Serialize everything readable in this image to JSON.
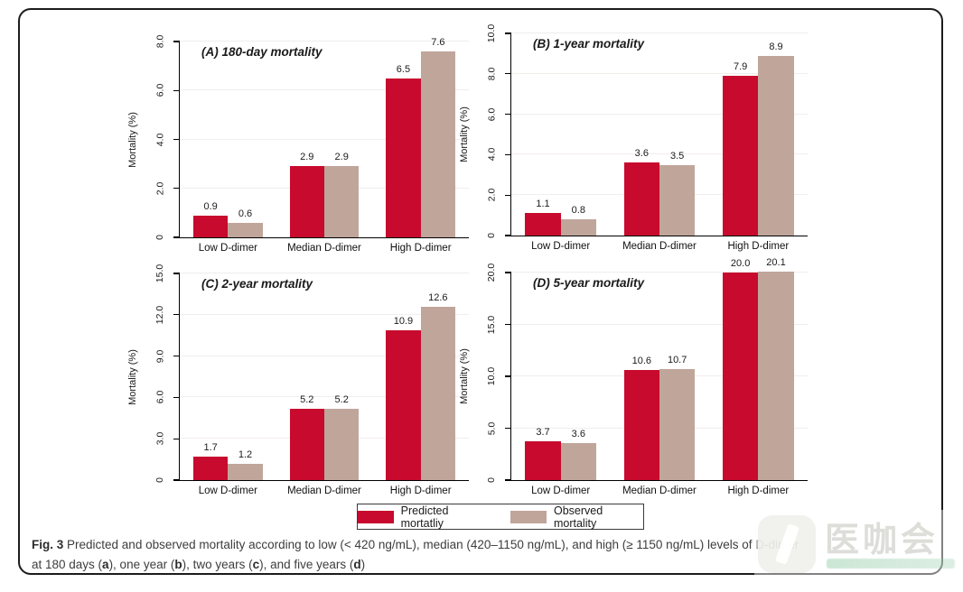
{
  "colors": {
    "predicted": "#C70A2D",
    "observed": "#C0A59B",
    "gridline": "#F1EDEB"
  },
  "legend": {
    "items": [
      {
        "series": "predicted",
        "label": "Predicted mortatliy"
      },
      {
        "series": "observed",
        "label": "Observed mortality"
      }
    ]
  },
  "caption": {
    "segments": [
      {
        "text": "Fig. 3",
        "bold": true
      },
      {
        "text": " Predicted and observed mortality according to low (< 420 ng/mL), median (420–1150 ng/mL), and high (≥ 1150 ng/mL) levels of D-dimer",
        "bold": false
      },
      {
        "br": true
      },
      {
        "text": "at 180 days (",
        "bold": false
      },
      {
        "text": "a",
        "bold": true
      },
      {
        "text": "), one year (",
        "bold": false
      },
      {
        "text": "b",
        "bold": true
      },
      {
        "text": "), two years (",
        "bold": false
      },
      {
        "text": "c",
        "bold": true
      },
      {
        "text": "), and five years (",
        "bold": false
      },
      {
        "text": "d",
        "bold": true
      },
      {
        "text": ")",
        "bold": false
      }
    ]
  },
  "watermark": {
    "text": "医咖会"
  },
  "chart_data": [
    {
      "type": "bar",
      "title": "(A) 180-day mortality",
      "ylabel": "Mortality (%)",
      "categories": [
        "Low D-dimer",
        "Median D-dimer",
        "High D-dimer"
      ],
      "series": [
        {
          "name": "Predicted mortatliy",
          "values": [
            0.9,
            2.9,
            6.5
          ]
        },
        {
          "name": "Observed mortality",
          "values": [
            0.6,
            2.9,
            7.6
          ]
        }
      ],
      "ylim": [
        0,
        8
      ],
      "ytick_values": [
        0,
        2,
        4,
        6,
        8
      ],
      "ytick_labels": [
        "0",
        "2.0",
        "4.0",
        "6.0",
        "8.0"
      ],
      "grid": true,
      "legend_position": "shared-bottom"
    },
    {
      "type": "bar",
      "title": "(B) 1-year mortality",
      "ylabel": "Mortality (%)",
      "categories": [
        "Low D-dimer",
        "Median D-dimer",
        "High D-dimer"
      ],
      "series": [
        {
          "name": "Predicted mortatliy",
          "values": [
            1.1,
            3.6,
            7.9
          ]
        },
        {
          "name": "Observed mortality",
          "values": [
            0.8,
            3.5,
            8.9
          ]
        }
      ],
      "ylim": [
        0,
        10
      ],
      "ytick_values": [
        0,
        2,
        4,
        6,
        8,
        10
      ],
      "ytick_labels": [
        "0",
        "2.0",
        "4.0",
        "6.0",
        "8.0",
        "10.0"
      ],
      "grid": true,
      "legend_position": "shared-bottom"
    },
    {
      "type": "bar",
      "title": "(C) 2-year mortality",
      "ylabel": "Mortality (%)",
      "categories": [
        "Low D-dimer",
        "Median D-dimer",
        "High D-dimer"
      ],
      "series": [
        {
          "name": "Predicted mortatliy",
          "values": [
            1.7,
            5.2,
            10.9
          ]
        },
        {
          "name": "Observed mortality",
          "values": [
            1.2,
            5.2,
            12.6
          ]
        }
      ],
      "ylim": [
        0,
        15
      ],
      "ytick_values": [
        0,
        3,
        6,
        9,
        12,
        15
      ],
      "ytick_labels": [
        "0",
        "3.0",
        "6.0",
        "9.0",
        "12.0",
        "15.0"
      ],
      "grid": true,
      "legend_position": "shared-bottom"
    },
    {
      "type": "bar",
      "title": "(D) 5-year mortality",
      "ylabel": "Mortality (%)",
      "categories": [
        "Low D-dimer",
        "Median D-dimer",
        "High D-dimer"
      ],
      "series": [
        {
          "name": "Predicted mortatliy",
          "values": [
            3.7,
            10.6,
            20.0
          ]
        },
        {
          "name": "Observed mortality",
          "values": [
            3.6,
            10.7,
            20.1
          ]
        }
      ],
      "ylim": [
        0,
        20
      ],
      "ytick_values": [
        0,
        5,
        10,
        15,
        20
      ],
      "ytick_labels": [
        "0",
        "5.0",
        "10.0",
        "15.0",
        "20.0"
      ],
      "grid": true,
      "legend_position": "shared-bottom"
    }
  ]
}
